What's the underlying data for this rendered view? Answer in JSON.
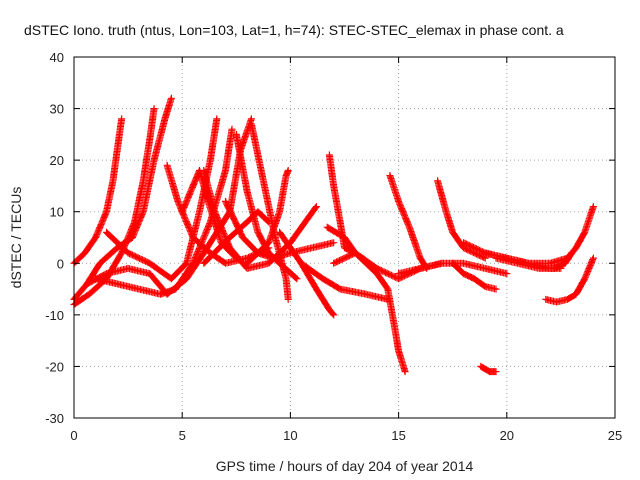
{
  "chart_data": {
    "type": "scatter",
    "title": "dSTEC Iono. truth (ntus, Lon=103, Lat=1, h=74): STEC-STEC_elemax in phase cont. a",
    "xlabel": "GPS time / hours of day 204 of year 2014",
    "ylabel": "dSTEC  / TECUs",
    "xlim": [
      0,
      25
    ],
    "ylim": [
      -30,
      40
    ],
    "xticks": [
      0,
      5,
      10,
      15,
      20,
      25
    ],
    "yticks": [
      -30,
      -20,
      -10,
      0,
      10,
      20,
      30,
      40
    ],
    "grid": true,
    "marker": "+",
    "color": "#ff0000",
    "series": [
      {
        "points": [
          [
            0.0,
            0
          ],
          [
            0.5,
            2
          ],
          [
            1.0,
            5
          ],
          [
            1.5,
            10
          ],
          [
            1.8,
            16
          ],
          [
            2.0,
            22
          ],
          [
            2.2,
            28
          ]
        ]
      },
      {
        "points": [
          [
            0.0,
            -8
          ],
          [
            0.7,
            -6
          ],
          [
            1.5,
            -3
          ],
          [
            2.2,
            2
          ],
          [
            2.8,
            8
          ],
          [
            3.2,
            16
          ],
          [
            3.5,
            24
          ],
          [
            3.7,
            30
          ]
        ]
      },
      {
        "points": [
          [
            0.0,
            -7
          ],
          [
            0.6,
            -4
          ],
          [
            1.2,
            0
          ],
          [
            2.0,
            3
          ],
          [
            2.7,
            5
          ],
          [
            3.2,
            10
          ],
          [
            3.7,
            20
          ],
          [
            4.2,
            28
          ],
          [
            4.5,
            32
          ]
        ]
      },
      {
        "points": [
          [
            1.5,
            6
          ],
          [
            2.5,
            2
          ],
          [
            3.5,
            0
          ],
          [
            4.5,
            -3
          ],
          [
            5.2,
            0
          ],
          [
            5.8,
            10
          ],
          [
            6.3,
            20
          ],
          [
            6.6,
            28
          ]
        ]
      },
      {
        "points": [
          [
            1.0,
            -3
          ],
          [
            2.0,
            -4
          ],
          [
            3.0,
            -5
          ],
          [
            4.0,
            -6
          ],
          [
            4.7,
            -5
          ],
          [
            5.5,
            0
          ],
          [
            6.3,
            8
          ],
          [
            7.0,
            18
          ],
          [
            7.3,
            26
          ]
        ]
      },
      {
        "points": [
          [
            0.6,
            -4
          ],
          [
            1.5,
            -2
          ],
          [
            2.5,
            -1
          ],
          [
            3.5,
            -2
          ],
          [
            4.3,
            -6
          ],
          [
            5.2,
            -3
          ],
          [
            6.0,
            2
          ],
          [
            7.2,
            10
          ],
          [
            7.7,
            22
          ],
          [
            8.2,
            28
          ]
        ]
      },
      {
        "points": [
          [
            4.3,
            19
          ],
          [
            4.8,
            12
          ],
          [
            5.5,
            5
          ],
          [
            6.3,
            2
          ],
          [
            7.0,
            0
          ],
          [
            8.0,
            1
          ],
          [
            9.0,
            3
          ]
        ]
      },
      {
        "points": [
          [
            5.0,
            10
          ],
          [
            5.5,
            15
          ],
          [
            5.8,
            18
          ],
          [
            6.2,
            12
          ],
          [
            6.8,
            4
          ],
          [
            7.5,
            1
          ]
        ]
      },
      {
        "points": [
          [
            6.0,
            18
          ],
          [
            6.5,
            10
          ],
          [
            7.2,
            3
          ],
          [
            8.0,
            -1
          ],
          [
            9.0,
            0
          ],
          [
            10.0,
            4
          ],
          [
            11.2,
            11
          ]
        ]
      },
      {
        "points": [
          [
            7.0,
            12
          ],
          [
            7.8,
            5
          ],
          [
            8.5,
            2
          ],
          [
            9.2,
            1
          ],
          [
            10.0,
            2
          ],
          [
            11.0,
            3
          ],
          [
            12.0,
            4
          ]
        ]
      },
      {
        "points": [
          [
            7.5,
            25
          ],
          [
            8.0,
            14
          ],
          [
            8.5,
            6
          ],
          [
            9.0,
            2
          ],
          [
            9.5,
            0
          ],
          [
            10.3,
            -3
          ]
        ]
      },
      {
        "points": [
          [
            8.2,
            27
          ],
          [
            8.8,
            15
          ],
          [
            9.3,
            5
          ],
          [
            9.8,
            -3
          ],
          [
            9.9,
            -7
          ]
        ]
      },
      {
        "points": [
          [
            8.0,
            0
          ],
          [
            9.0,
            4
          ],
          [
            9.5,
            10
          ],
          [
            9.8,
            17
          ],
          [
            9.9,
            18
          ]
        ]
      },
      {
        "points": [
          [
            6.0,
            0
          ],
          [
            7.2,
            5
          ],
          [
            8.0,
            8
          ],
          [
            8.5,
            10
          ],
          [
            9.0,
            8
          ]
        ]
      },
      {
        "points": [
          [
            9.5,
            6
          ],
          [
            10.5,
            0
          ],
          [
            11.5,
            -3
          ],
          [
            12.3,
            -5
          ],
          [
            13.5,
            -6
          ],
          [
            14.5,
            -7
          ]
        ]
      },
      {
        "points": [
          [
            10.5,
            0
          ],
          [
            11.2,
            -5
          ],
          [
            11.8,
            -9
          ],
          [
            12.0,
            -10
          ]
        ]
      },
      {
        "points": [
          [
            11.8,
            21
          ],
          [
            12.0,
            15
          ],
          [
            12.3,
            8
          ],
          [
            12.5,
            3
          ],
          [
            13.0,
            2
          ]
        ]
      },
      {
        "points": [
          [
            11.7,
            7
          ],
          [
            12.5,
            5
          ],
          [
            13.0,
            2
          ],
          [
            14.0,
            -2
          ],
          [
            14.5,
            -5
          ],
          [
            14.8,
            -12
          ],
          [
            15.0,
            -17
          ],
          [
            15.3,
            -21
          ]
        ]
      },
      {
        "points": [
          [
            12.0,
            0
          ],
          [
            13.0,
            2
          ],
          [
            14.0,
            -1
          ],
          [
            15.0,
            -3
          ],
          [
            16.0,
            -1
          ],
          [
            17.0,
            0
          ]
        ]
      },
      {
        "points": [
          [
            14.6,
            17
          ],
          [
            15.0,
            12
          ],
          [
            15.5,
            7
          ],
          [
            16.0,
            1
          ],
          [
            16.3,
            -1
          ]
        ]
      },
      {
        "points": [
          [
            16.8,
            16
          ],
          [
            17.2,
            10
          ],
          [
            17.5,
            6
          ],
          [
            18.0,
            3
          ],
          [
            19.0,
            1
          ]
        ]
      },
      {
        "points": [
          [
            15.0,
            -2
          ],
          [
            16.0,
            -1
          ],
          [
            17.0,
            0
          ],
          [
            18.0,
            0
          ],
          [
            19.0,
            -1
          ],
          [
            20.0,
            -2
          ]
        ]
      },
      {
        "points": [
          [
            17.5,
            0
          ],
          [
            18.0,
            -2
          ],
          [
            18.5,
            -3
          ],
          [
            19.0,
            -4.5
          ],
          [
            19.5,
            -5
          ]
        ]
      },
      {
        "points": [
          [
            18.8,
            -20
          ],
          [
            19.2,
            -21
          ],
          [
            19.5,
            -21
          ]
        ]
      },
      {
        "points": [
          [
            18.0,
            4
          ],
          [
            19.0,
            2
          ],
          [
            20.0,
            1
          ],
          [
            21.0,
            0
          ],
          [
            22.0,
            -1
          ],
          [
            22.5,
            -1
          ]
        ]
      },
      {
        "points": [
          [
            19.0,
            2
          ],
          [
            20.0,
            1
          ],
          [
            21.0,
            0
          ],
          [
            22.0,
            0
          ],
          [
            22.8,
            1
          ],
          [
            23.2,
            3
          ],
          [
            23.6,
            6
          ],
          [
            24.0,
            11
          ]
        ]
      },
      {
        "points": [
          [
            19.5,
            1
          ],
          [
            20.5,
            0
          ],
          [
            21.5,
            -1
          ],
          [
            22.2,
            -1
          ],
          [
            22.7,
            0
          ],
          [
            23.0,
            2
          ]
        ]
      },
      {
        "points": [
          [
            21.8,
            -7
          ],
          [
            22.3,
            -7.5
          ],
          [
            22.8,
            -7
          ],
          [
            23.2,
            -6
          ],
          [
            23.6,
            -3
          ],
          [
            24.0,
            1
          ]
        ]
      }
    ]
  }
}
